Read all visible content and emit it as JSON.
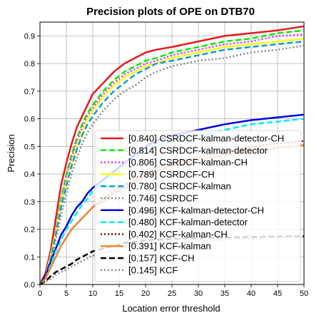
{
  "chart_data": {
    "type": "line",
    "title": "Precision plots of OPE on DTB70",
    "xlabel": "Location error threshold",
    "ylabel": "Precision",
    "xlim": [
      0,
      50
    ],
    "ylim": [
      0,
      0.95
    ],
    "xticks": [
      "0",
      "5",
      "10",
      "15",
      "20",
      "25",
      "30",
      "35",
      "40",
      "45",
      "50"
    ],
    "yticks": [
      "0.0",
      "0.1",
      "0.2",
      "0.3",
      "0.4",
      "0.5",
      "0.6",
      "0.7",
      "0.8",
      "0.9"
    ],
    "grid": true,
    "legend_position": "lower-right",
    "x": [
      0,
      1,
      2,
      3,
      4,
      5,
      6,
      7,
      8,
      9,
      10,
      12,
      14,
      16,
      18,
      20,
      22,
      25,
      30,
      35,
      40,
      45,
      50
    ],
    "series": [
      {
        "name": "[0.840] CSRDCF-kalman-detector-CH",
        "color": "#e8191e",
        "dash": "solid",
        "values": [
          0.0,
          0.04,
          0.12,
          0.24,
          0.36,
          0.44,
          0.51,
          0.57,
          0.61,
          0.65,
          0.69,
          0.73,
          0.77,
          0.8,
          0.82,
          0.84,
          0.85,
          0.86,
          0.88,
          0.9,
          0.91,
          0.92,
          0.935
        ]
      },
      {
        "name": "[0.814] CSRDCF-kalman-detector",
        "color": "#00ee00",
        "dash": "dashed",
        "values": [
          0.0,
          0.03,
          0.1,
          0.2,
          0.31,
          0.4,
          0.47,
          0.53,
          0.58,
          0.62,
          0.65,
          0.7,
          0.74,
          0.77,
          0.79,
          0.81,
          0.82,
          0.84,
          0.86,
          0.88,
          0.89,
          0.91,
          0.92
        ]
      },
      {
        "name": "[0.806] CSRDCF-kalman-CH",
        "color": "#ff22ff",
        "dash": "dotted",
        "values": [
          0.0,
          0.03,
          0.1,
          0.2,
          0.3,
          0.39,
          0.46,
          0.52,
          0.57,
          0.61,
          0.64,
          0.69,
          0.73,
          0.76,
          0.78,
          0.8,
          0.81,
          0.83,
          0.85,
          0.87,
          0.88,
          0.9,
          0.905
        ]
      },
      {
        "name": "[0.789] CSRDCF-CH",
        "color": "#ffff22",
        "dash": "solid",
        "values": [
          0.0,
          0.03,
          0.1,
          0.19,
          0.29,
          0.37,
          0.44,
          0.5,
          0.55,
          0.6,
          0.63,
          0.68,
          0.72,
          0.75,
          0.77,
          0.79,
          0.8,
          0.82,
          0.84,
          0.86,
          0.87,
          0.88,
          0.89
        ]
      },
      {
        "name": "[0.780] CSRDCF-kalman",
        "color": "#1199dd",
        "dash": "dashed",
        "values": [
          0.0,
          0.03,
          0.09,
          0.18,
          0.28,
          0.36,
          0.43,
          0.49,
          0.54,
          0.58,
          0.61,
          0.66,
          0.7,
          0.73,
          0.76,
          0.78,
          0.8,
          0.81,
          0.83,
          0.85,
          0.86,
          0.87,
          0.88
        ]
      },
      {
        "name": "[0.746] CSRDCF",
        "color": "#888888",
        "dash": "dotted",
        "values": [
          0.0,
          0.03,
          0.08,
          0.16,
          0.25,
          0.33,
          0.4,
          0.46,
          0.51,
          0.55,
          0.58,
          0.63,
          0.67,
          0.7,
          0.72,
          0.75,
          0.77,
          0.79,
          0.81,
          0.82,
          0.84,
          0.85,
          0.865
        ]
      },
      {
        "name": "[0.496] KCF-kalman-detector-CH",
        "color": "#0000dd",
        "dash": "solid",
        "values": [
          0.0,
          0.03,
          0.08,
          0.13,
          0.18,
          0.21,
          0.25,
          0.28,
          0.3,
          0.33,
          0.35,
          0.38,
          0.41,
          0.44,
          0.47,
          0.5,
          0.52,
          0.54,
          0.56,
          0.58,
          0.595,
          0.605,
          0.615
        ]
      },
      {
        "name": "[0.480] KCF-kalman-detector",
        "color": "#00f0f0",
        "dash": "dashed",
        "values": [
          0.0,
          0.02,
          0.07,
          0.12,
          0.16,
          0.2,
          0.23,
          0.26,
          0.29,
          0.31,
          0.34,
          0.37,
          0.4,
          0.43,
          0.46,
          0.48,
          0.5,
          0.52,
          0.54,
          0.56,
          0.58,
          0.59,
          0.6
        ]
      },
      {
        "name": "[0.402] KCF-kalman-CH",
        "color": "#8b0000",
        "dash": "dotted",
        "values": [
          0.0,
          0.02,
          0.06,
          0.1,
          0.14,
          0.17,
          0.2,
          0.22,
          0.24,
          0.26,
          0.28,
          0.31,
          0.34,
          0.36,
          0.38,
          0.4,
          0.42,
          0.44,
          0.46,
          0.48,
          0.5,
          0.51,
          0.52
        ]
      },
      {
        "name": "[0.391] KCF-kalman",
        "color": "#ee8833",
        "dash": "solid",
        "values": [
          0.0,
          0.02,
          0.06,
          0.1,
          0.14,
          0.17,
          0.2,
          0.22,
          0.24,
          0.26,
          0.28,
          0.3,
          0.33,
          0.35,
          0.37,
          0.39,
          0.41,
          0.43,
          0.45,
          0.47,
          0.48,
          0.495,
          0.505
        ]
      },
      {
        "name": "[0.157] KCF-CH",
        "color": "#000000",
        "dash": "dashed",
        "values": [
          0.0,
          0.01,
          0.03,
          0.045,
          0.055,
          0.065,
          0.075,
          0.09,
          0.1,
          0.11,
          0.12,
          0.13,
          0.14,
          0.15,
          0.155,
          0.16,
          0.162,
          0.165,
          0.168,
          0.17,
          0.172,
          0.174,
          0.175
        ]
      },
      {
        "name": "[0.145] KCF",
        "color": "#888888",
        "dash": "dotted",
        "values": [
          0.0,
          0.01,
          0.02,
          0.035,
          0.045,
          0.055,
          0.065,
          0.075,
          0.085,
          0.095,
          0.105,
          0.115,
          0.125,
          0.135,
          0.14,
          0.145,
          0.148,
          0.152,
          0.157,
          0.162,
          0.166,
          0.17,
          0.172
        ]
      }
    ]
  }
}
